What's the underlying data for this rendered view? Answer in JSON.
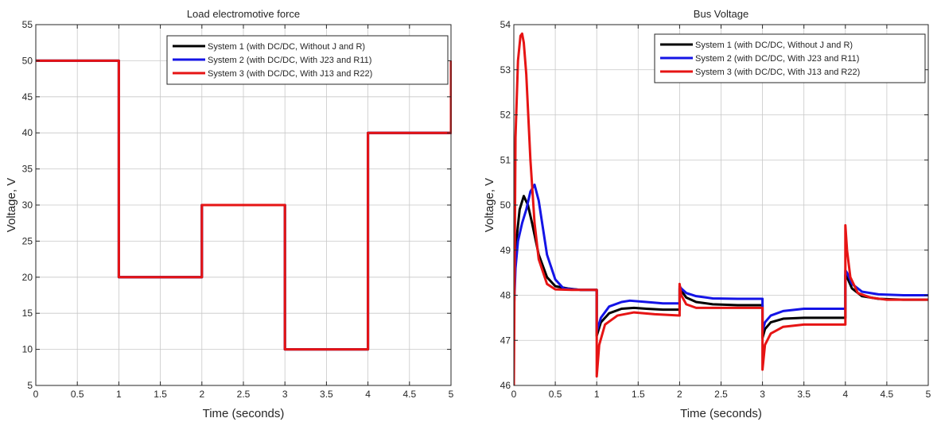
{
  "figure": {
    "background": "#ffffff"
  },
  "chart_data": [
    {
      "type": "line",
      "title": "Load electromotive force",
      "xlabel": "Time (seconds)",
      "ylabel": "Voltage, V",
      "xlim": [
        0,
        5
      ],
      "ylim": [
        5,
        55
      ],
      "xticks": [
        0,
        0.5,
        1,
        1.5,
        2,
        2.5,
        3,
        3.5,
        4,
        4.5,
        5
      ],
      "xtick_labels": [
        "0",
        "0.5",
        "1",
        "1.5",
        "2",
        "2.5",
        "3",
        "3.5",
        "4",
        "4.5",
        "5"
      ],
      "yticks": [
        5,
        10,
        15,
        20,
        25,
        30,
        35,
        40,
        45,
        50,
        55
      ],
      "ytick_labels": [
        "5",
        "10",
        "15",
        "20",
        "25",
        "30",
        "35",
        "40",
        "45",
        "50",
        "55"
      ],
      "grid": true,
      "legend_position": "top-right",
      "series": [
        {
          "name": "System 1 (with DC/DC, Without J and R)",
          "color": "#000000",
          "x": [
            0,
            1,
            1,
            2,
            2,
            3,
            3,
            4,
            4,
            5,
            5
          ],
          "y": [
            50,
            50,
            20,
            20,
            30,
            30,
            10,
            10,
            40,
            40,
            50
          ]
        },
        {
          "name": "System 2 (with DC/DC, With J23 and R11)",
          "color": "#1414e6",
          "x": [
            0,
            1,
            1,
            2,
            2,
            3,
            3,
            4,
            4,
            5,
            5
          ],
          "y": [
            50,
            50,
            20,
            20,
            30,
            30,
            10,
            10,
            40,
            40,
            50
          ]
        },
        {
          "name": "System 3 (with DC/DC, With J13 and R22)",
          "color": "#e61414",
          "x": [
            0,
            1,
            1,
            2,
            2,
            3,
            3,
            4,
            4,
            5,
            5
          ],
          "y": [
            50,
            50,
            20,
            20,
            30,
            30,
            10,
            10,
            40,
            40,
            50
          ]
        }
      ]
    },
    {
      "type": "line",
      "title": "Bus Voltage",
      "xlabel": "Time (seconds)",
      "ylabel": "Voltage, V",
      "xlim": [
        0,
        5
      ],
      "ylim": [
        46,
        54
      ],
      "xticks": [
        0,
        0.5,
        1,
        1.5,
        2,
        2.5,
        3,
        3.5,
        4,
        4.5,
        5
      ],
      "xtick_labels": [
        "0",
        "0.5",
        "1",
        "1.5",
        "2",
        "2.5",
        "3",
        "3.5",
        "4",
        "4.5",
        "5"
      ],
      "yticks": [
        46,
        47,
        48,
        49,
        50,
        51,
        52,
        53,
        54
      ],
      "ytick_labels": [
        "46",
        "47",
        "48",
        "49",
        "50",
        "51",
        "52",
        "53",
        "54"
      ],
      "grid": true,
      "legend_position": "top-right",
      "series": [
        {
          "name": "System 1 (with DC/DC, Without J and R)",
          "color": "#000000",
          "x": [
            0,
            0.03,
            0.07,
            0.12,
            0.17,
            0.22,
            0.3,
            0.4,
            0.5,
            0.65,
            0.8,
            1.0,
            1.0,
            1.05,
            1.15,
            1.3,
            1.45,
            1.6,
            1.8,
            2.0,
            2.0,
            2.02,
            2.08,
            2.2,
            2.4,
            2.7,
            3.0,
            3.0,
            3.03,
            3.1,
            3.25,
            3.5,
            3.8,
            4.0,
            4.0,
            4.02,
            4.08,
            4.2,
            4.4,
            4.7,
            5.0
          ],
          "y": [
            48.0,
            49.2,
            49.9,
            50.2,
            50.0,
            49.6,
            48.9,
            48.4,
            48.2,
            48.15,
            48.12,
            48.12,
            47.1,
            47.4,
            47.6,
            47.7,
            47.72,
            47.7,
            47.68,
            47.68,
            48.15,
            48.1,
            47.95,
            47.85,
            47.8,
            47.78,
            47.78,
            47.05,
            47.25,
            47.4,
            47.48,
            47.5,
            47.5,
            47.5,
            48.45,
            48.4,
            48.15,
            47.98,
            47.92,
            47.9,
            47.9
          ]
        },
        {
          "name": "System 2 (with DC/DC, With J23 and R11)",
          "color": "#1414e6",
          "x": [
            0,
            0.02,
            0.05,
            0.1,
            0.15,
            0.2,
            0.25,
            0.3,
            0.35,
            0.4,
            0.5,
            0.6,
            0.8,
            1.0,
            1.0,
            1.05,
            1.15,
            1.3,
            1.4,
            1.6,
            1.8,
            2.0,
            2.0,
            2.02,
            2.08,
            2.2,
            2.4,
            2.7,
            3.0,
            3.0,
            3.03,
            3.1,
            3.25,
            3.5,
            3.8,
            4.0,
            4.0,
            4.02,
            4.08,
            4.2,
            4.4,
            4.7,
            5.0
          ],
          "y": [
            47.6,
            48.6,
            49.2,
            49.6,
            49.9,
            50.3,
            50.45,
            50.1,
            49.5,
            48.9,
            48.35,
            48.15,
            48.12,
            48.12,
            47.2,
            47.5,
            47.75,
            47.85,
            47.88,
            47.85,
            47.82,
            47.82,
            48.2,
            48.15,
            48.05,
            47.98,
            47.93,
            47.92,
            47.92,
            47.2,
            47.4,
            47.55,
            47.65,
            47.7,
            47.7,
            47.7,
            48.55,
            48.5,
            48.25,
            48.08,
            48.02,
            48.0,
            48.0
          ]
        },
        {
          "name": "System 3 (with DC/DC, With J13 and R22)",
          "color": "#e61414",
          "x": [
            0,
            0.02,
            0.05,
            0.08,
            0.1,
            0.12,
            0.15,
            0.2,
            0.25,
            0.3,
            0.4,
            0.5,
            0.7,
            1.0,
            1.0,
            1.03,
            1.1,
            1.25,
            1.45,
            1.7,
            2.0,
            2.0,
            2.02,
            2.08,
            2.2,
            2.45,
            2.7,
            3.0,
            3.0,
            3.03,
            3.1,
            3.25,
            3.5,
            3.8,
            4.0,
            4.0,
            4.02,
            4.06,
            4.15,
            4.3,
            4.5,
            5.0
          ],
          "y": [
            46.0,
            51.5,
            53.2,
            53.75,
            53.8,
            53.6,
            52.9,
            51.0,
            49.6,
            48.8,
            48.25,
            48.13,
            48.12,
            48.12,
            46.2,
            46.9,
            47.35,
            47.55,
            47.62,
            47.58,
            47.55,
            48.25,
            48.0,
            47.8,
            47.72,
            47.72,
            47.72,
            47.72,
            46.35,
            46.9,
            47.15,
            47.3,
            47.35,
            47.35,
            47.35,
            49.55,
            49.0,
            48.4,
            48.05,
            47.95,
            47.9,
            47.9
          ]
        }
      ]
    }
  ]
}
